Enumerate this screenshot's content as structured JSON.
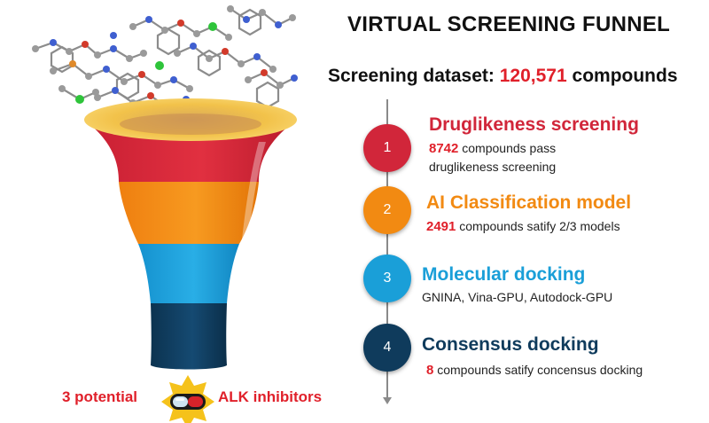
{
  "title": "VIRTUAL SCREENING FUNNEL",
  "dataset": {
    "label": "Screening dataset:",
    "count": "120,571",
    "unit": "compounds"
  },
  "steps": [
    {
      "number": "1",
      "title": "Druglikeness screening",
      "count": "8742",
      "desc_line1": "compounds pass",
      "desc_line2": "druglikeness screening",
      "color": "#d1263a"
    },
    {
      "number": "2",
      "title": "AI Classification model",
      "count": "2491",
      "desc_line1": "compounds satify 2/3 models",
      "color": "#f28a12"
    },
    {
      "number": "3",
      "title": "Molecular docking",
      "desc_line1": "GNINA, Vina-GPU, Autodock-GPU",
      "color": "#1a9fd8"
    },
    {
      "number": "4",
      "title": "Consensus docking",
      "count": "8",
      "desc_line1": "compounds satify concensus docking",
      "color": "#0f3b5c"
    }
  ],
  "result": {
    "left": "3 potential",
    "right": "ALK inhibitors"
  },
  "colors": {
    "accent_red": "#e0202a",
    "funnel_rim": "#f7c948",
    "badge": "#f5c21b"
  },
  "icons": [
    "molecule-icon",
    "pill-icon",
    "star-badge-icon"
  ]
}
